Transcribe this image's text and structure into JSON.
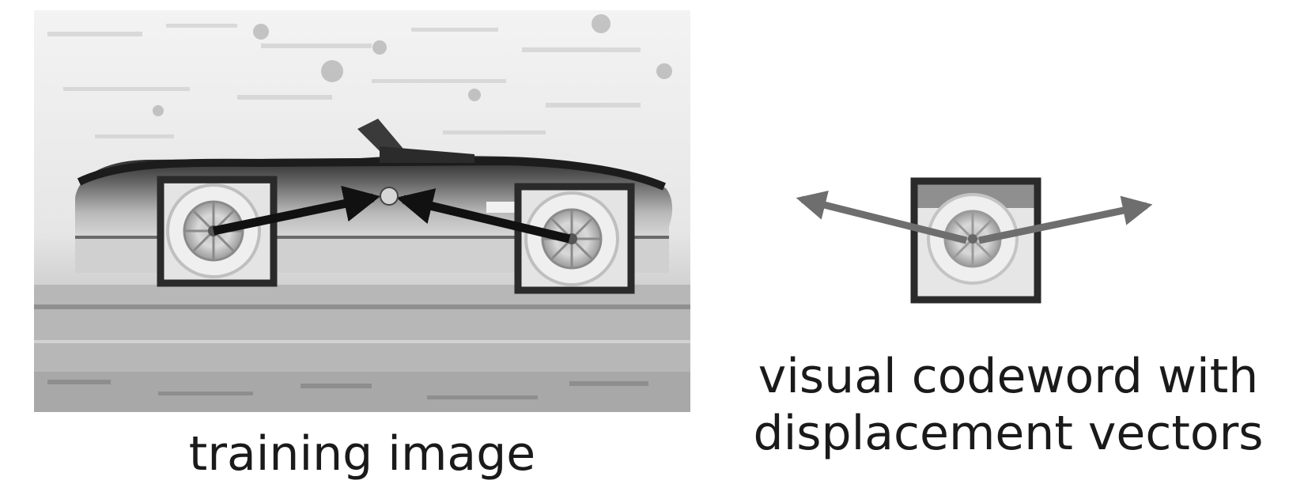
{
  "captions": {
    "training_image": "training image",
    "codeword_line1": "visual codeword with",
    "codeword_line2": "displacement vectors"
  },
  "colors": {
    "frame": "#2a2a2a",
    "vector_training": "#111111",
    "vector_codeword": "#6e6e6e",
    "center_point": "#d6d6d6",
    "photo_background": "#eeeeee",
    "car_body": "#1c1c1c"
  },
  "icons": {
    "photo": "inverted-car-photo",
    "wheel": "spoked-wheel-icon"
  }
}
